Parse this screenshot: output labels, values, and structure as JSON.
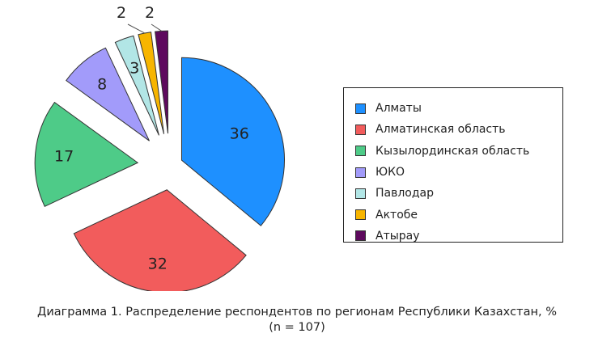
{
  "chart_data": {
    "type": "pie",
    "exploded": true,
    "categories": [
      "Алматы",
      "Алматинская область",
      "Кызылординская область",
      "ЮКО",
      "Павлодар",
      "Актобе",
      "Атырау"
    ],
    "values": [
      36,
      32,
      17,
      8,
      3,
      2,
      2
    ],
    "data_labels": [
      "36",
      "32",
      "17",
      "8",
      "3",
      "2",
      "2"
    ],
    "colors": [
      "#1e90ff",
      "#f25c5c",
      "#4ecb88",
      "#a29bfa",
      "#b2e6e6",
      "#f7b500",
      "#5e0a5e"
    ],
    "legend_position": "right"
  },
  "caption": {
    "line1": "Диаграмма 1. Распределение респондентов по регионам Республики Казахстан, %",
    "line2": "(n = 107)"
  }
}
